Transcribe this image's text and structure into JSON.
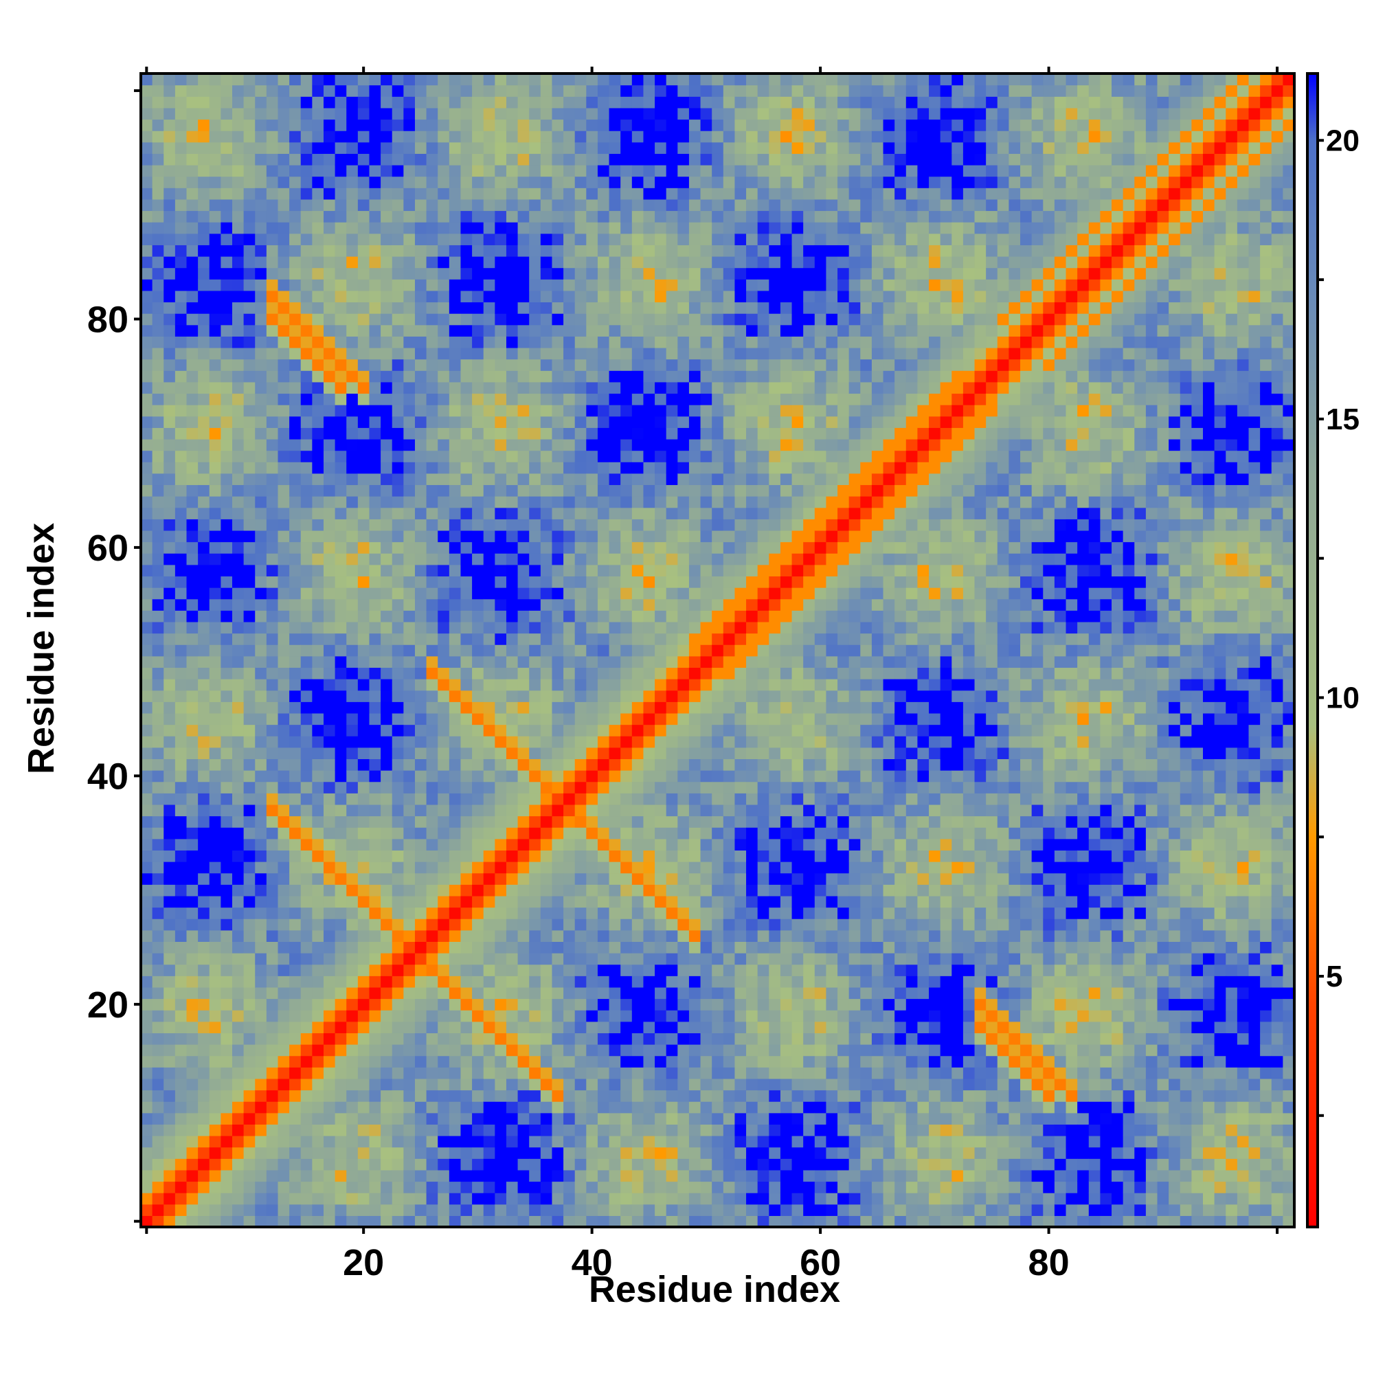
{
  "chart_data": {
    "type": "heatmap",
    "title": "",
    "xlabel": "Residue index",
    "ylabel": "Residue index",
    "n_residues": 101,
    "xlim": [
      1,
      101
    ],
    "ylim": [
      1,
      101
    ],
    "x_ticks": [
      20,
      40,
      60,
      80
    ],
    "y_ticks": [
      20,
      40,
      60,
      80
    ],
    "x_tick_labels": [
      "20",
      "40",
      "60",
      "80"
    ],
    "y_tick_labels": [
      "20",
      "40",
      "60",
      "80"
    ],
    "colorbar": {
      "range": [
        0.5,
        21.2
      ],
      "ticks": [
        5,
        10,
        15,
        20
      ],
      "tick_labels": [
        "5",
        "10",
        "15",
        "20"
      ],
      "stops": [
        {
          "value": 0.5,
          "color": "#ff0000"
        },
        {
          "value": 4.5,
          "color": "#ff4400"
        },
        {
          "value": 7.5,
          "color": "#ff9a00"
        },
        {
          "value": 9.5,
          "color": "#a8c080"
        },
        {
          "value": 14.0,
          "color": "#8fa898"
        },
        {
          "value": 17.5,
          "color": "#6688bb"
        },
        {
          "value": 20.0,
          "color": "#4d70c8"
        },
        {
          "value": 21.2,
          "color": "#0000ff"
        }
      ]
    },
    "value_meaning": "pairwise residue distance; cells above 21 shown saturated blue",
    "features": [
      {
        "name": "main diagonal",
        "i_range": [
          1,
          101
        ],
        "j_offset": 0,
        "value": 1
      },
      {
        "name": "diagonal flank",
        "i_range": [
          1,
          101
        ],
        "j_offset": 1,
        "value": 4.5
      },
      {
        "name": "diagonal flank",
        "i_range": [
          1,
          101
        ],
        "j_offset": 2,
        "value": 7
      },
      {
        "name": "antiparallel contact",
        "i_range": [
          12,
          24
        ],
        "j_sum": 49,
        "value": 6.5
      },
      {
        "name": "antiparallel contact",
        "i_range": [
          26,
          38
        ],
        "j_sum": 75,
        "value": 6.5
      },
      {
        "name": "antiparallel contact",
        "i_range": [
          12,
          18
        ],
        "j_sum": 92,
        "value": 6.5
      },
      {
        "name": "antiparallel contact",
        "i_range": [
          74,
          82
        ],
        "j_sum": 94,
        "value": 6.5
      },
      {
        "name": "parallel contact",
        "i_range": [
          80,
          100
        ],
        "j_offset": -4,
        "value": 7
      },
      {
        "name": "parallel contact",
        "i_range": [
          52,
          72
        ],
        "j_offset": 3,
        "value": 7
      }
    ],
    "grid": false,
    "legend": "colorbar right"
  }
}
